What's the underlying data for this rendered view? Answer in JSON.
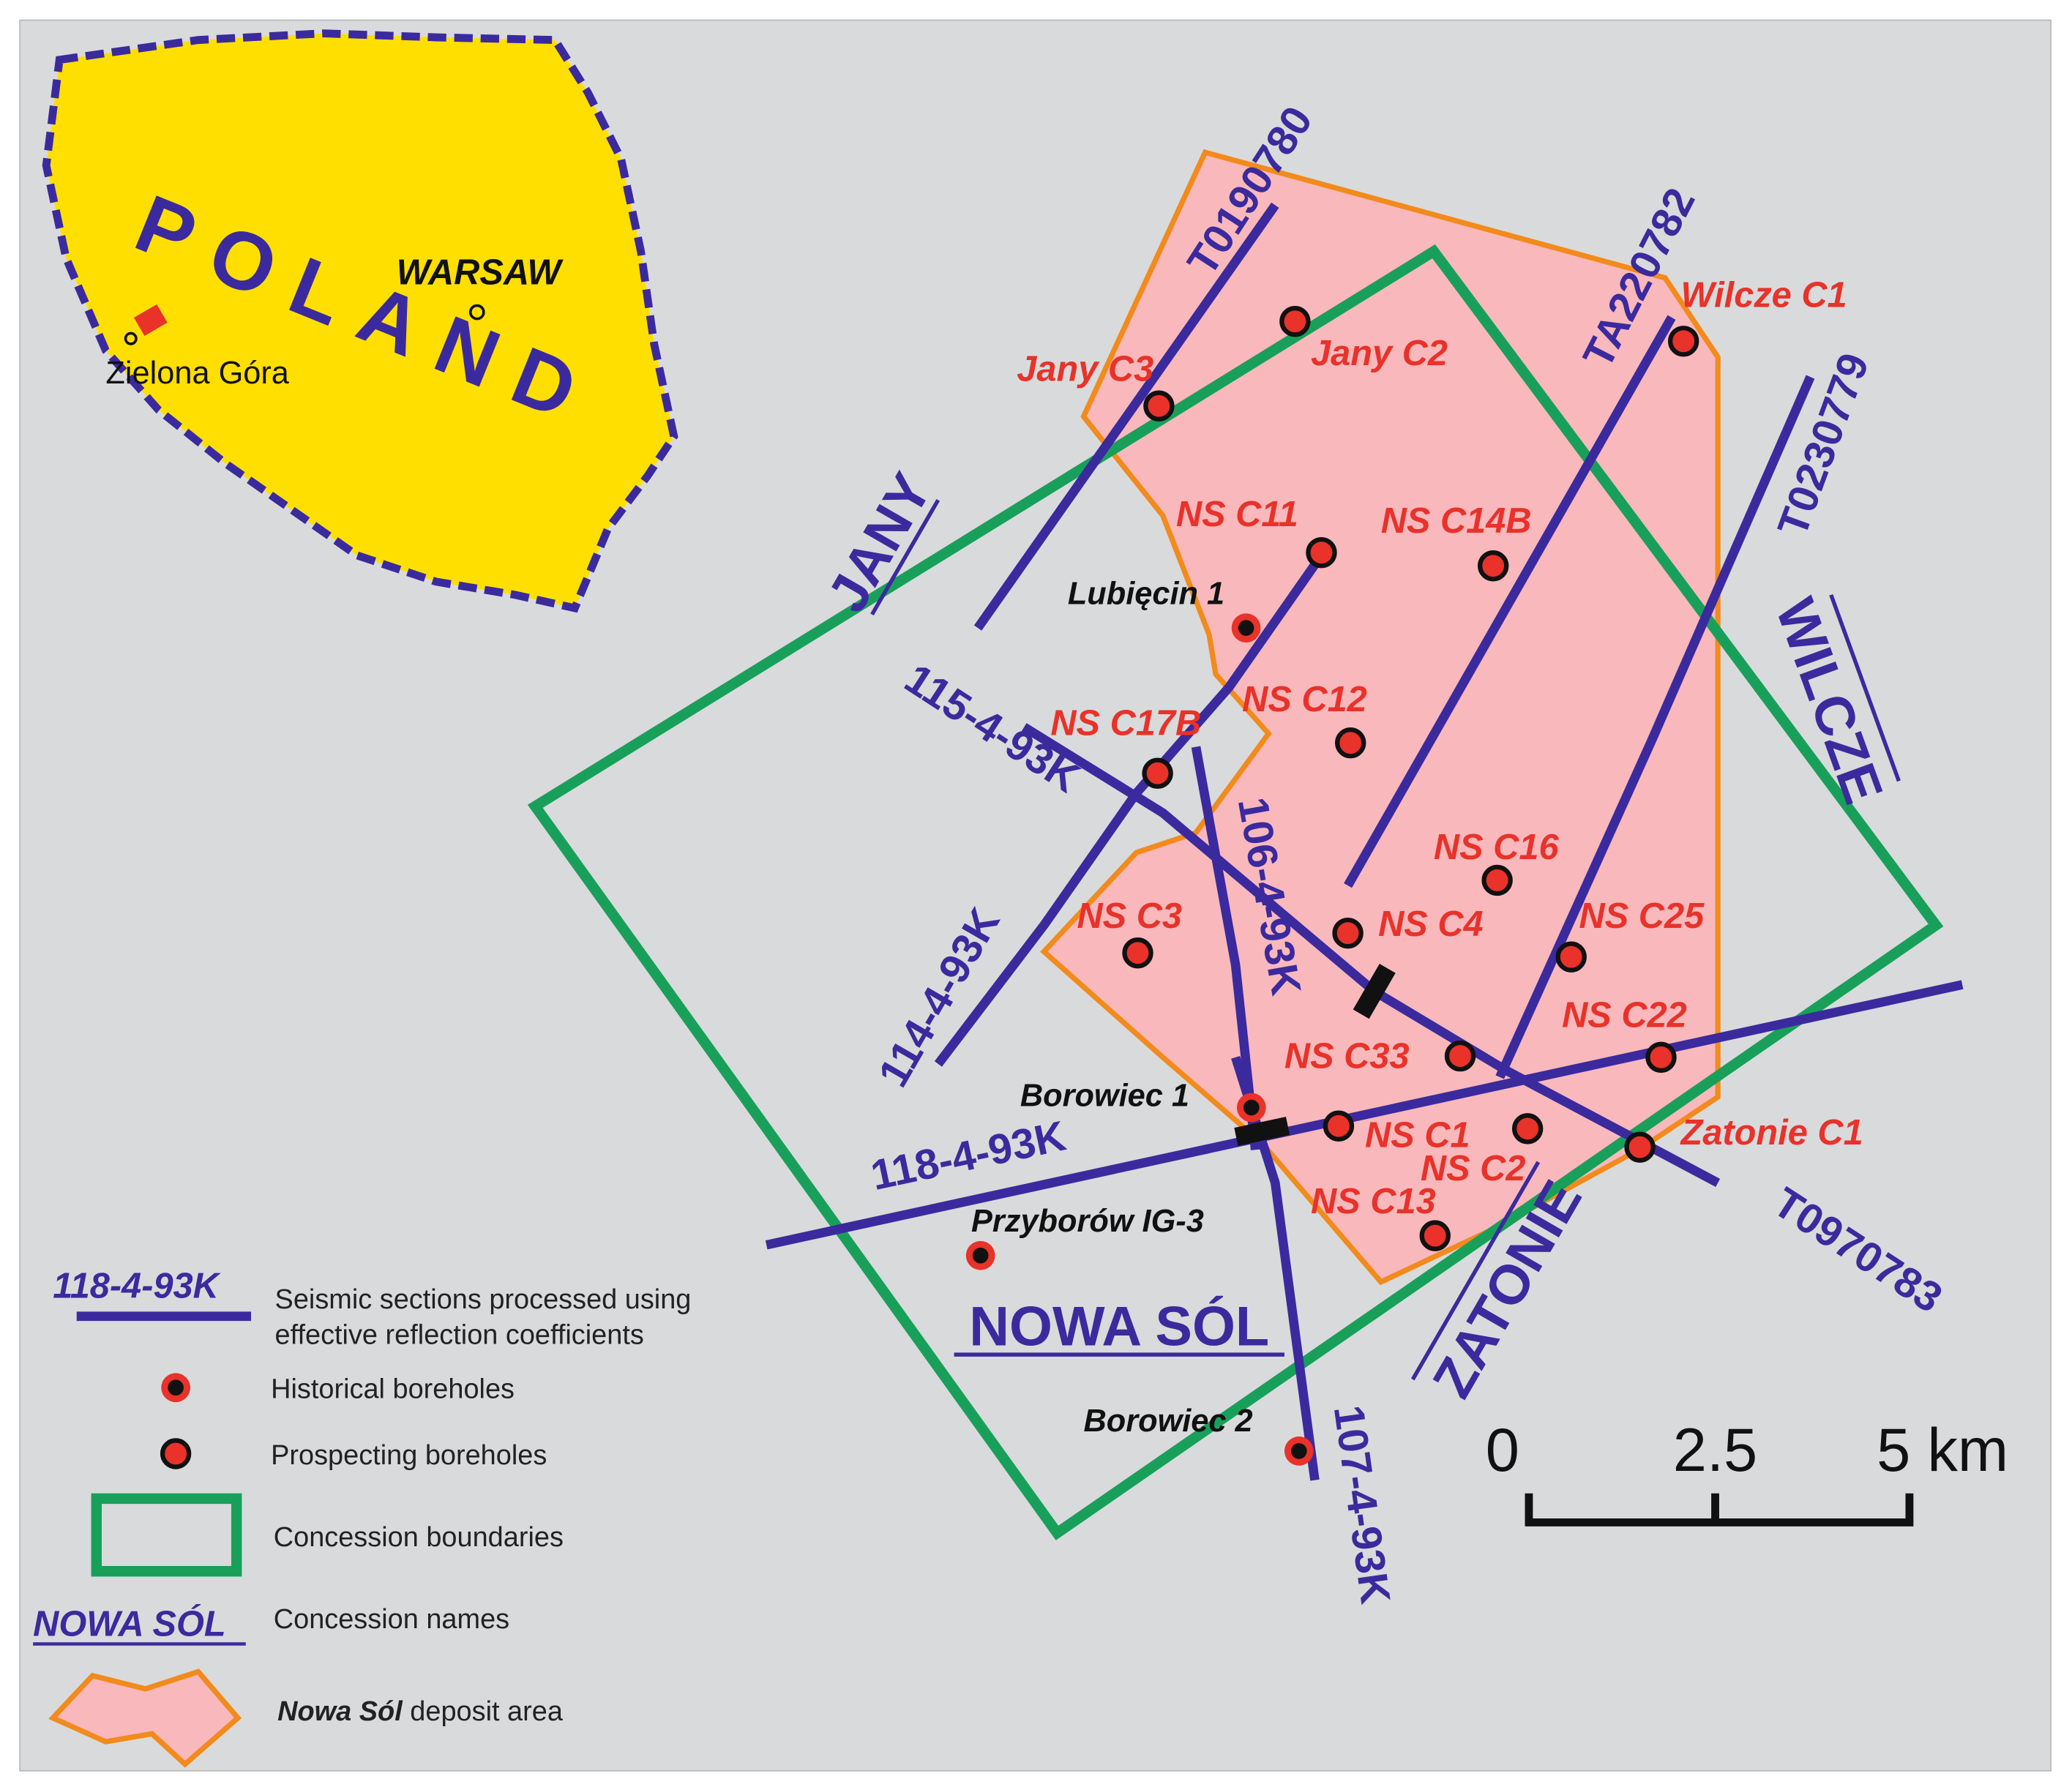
{
  "inset": {
    "country": "POLAND",
    "capital": "WARSAW",
    "city": "Zielona Góra"
  },
  "seismic_lines": [
    "T0190780",
    "TA220782",
    "T0230779",
    "115-4-93K",
    "114-4-93K",
    "106-4-93K",
    "118-4-93K",
    "T0970783",
    "107-4-93K"
  ],
  "prospecting_boreholes": [
    "Jany C3",
    "Jany C2",
    "Wilcze C1",
    "NS C11",
    "NS C14B",
    "NS C12",
    "NS C17B",
    "NS C16",
    "NS C3",
    "NS C4",
    "NS C25",
    "NS C22",
    "NS C33",
    "NS C1",
    "NS C2",
    "NS C13",
    "Zatonie C1"
  ],
  "historical_boreholes": [
    "Lubięcin 1",
    "Borowiec 1",
    "Przyborów IG-3",
    "Borowiec 2"
  ],
  "concessions": [
    "JANY",
    "WILCZE",
    "NOWA SÓL",
    "ZATONIE"
  ],
  "legend": {
    "seismic": {
      "sample": "118-4-93K",
      "lines": [
        "Seismic sections processed using",
        "effective reflection coefficients"
      ]
    },
    "historical": "Historical boreholes",
    "prospecting": "Prospecting boreholes",
    "boundaries": "Concession boundaries",
    "names": {
      "sample": "NOWA SÓL",
      "text": "Concession names"
    },
    "deposit": {
      "emphasis": "Nowa Sól",
      "text": "deposit area"
    }
  },
  "scale_bar": [
    "0",
    "2.5",
    "5 km"
  ]
}
